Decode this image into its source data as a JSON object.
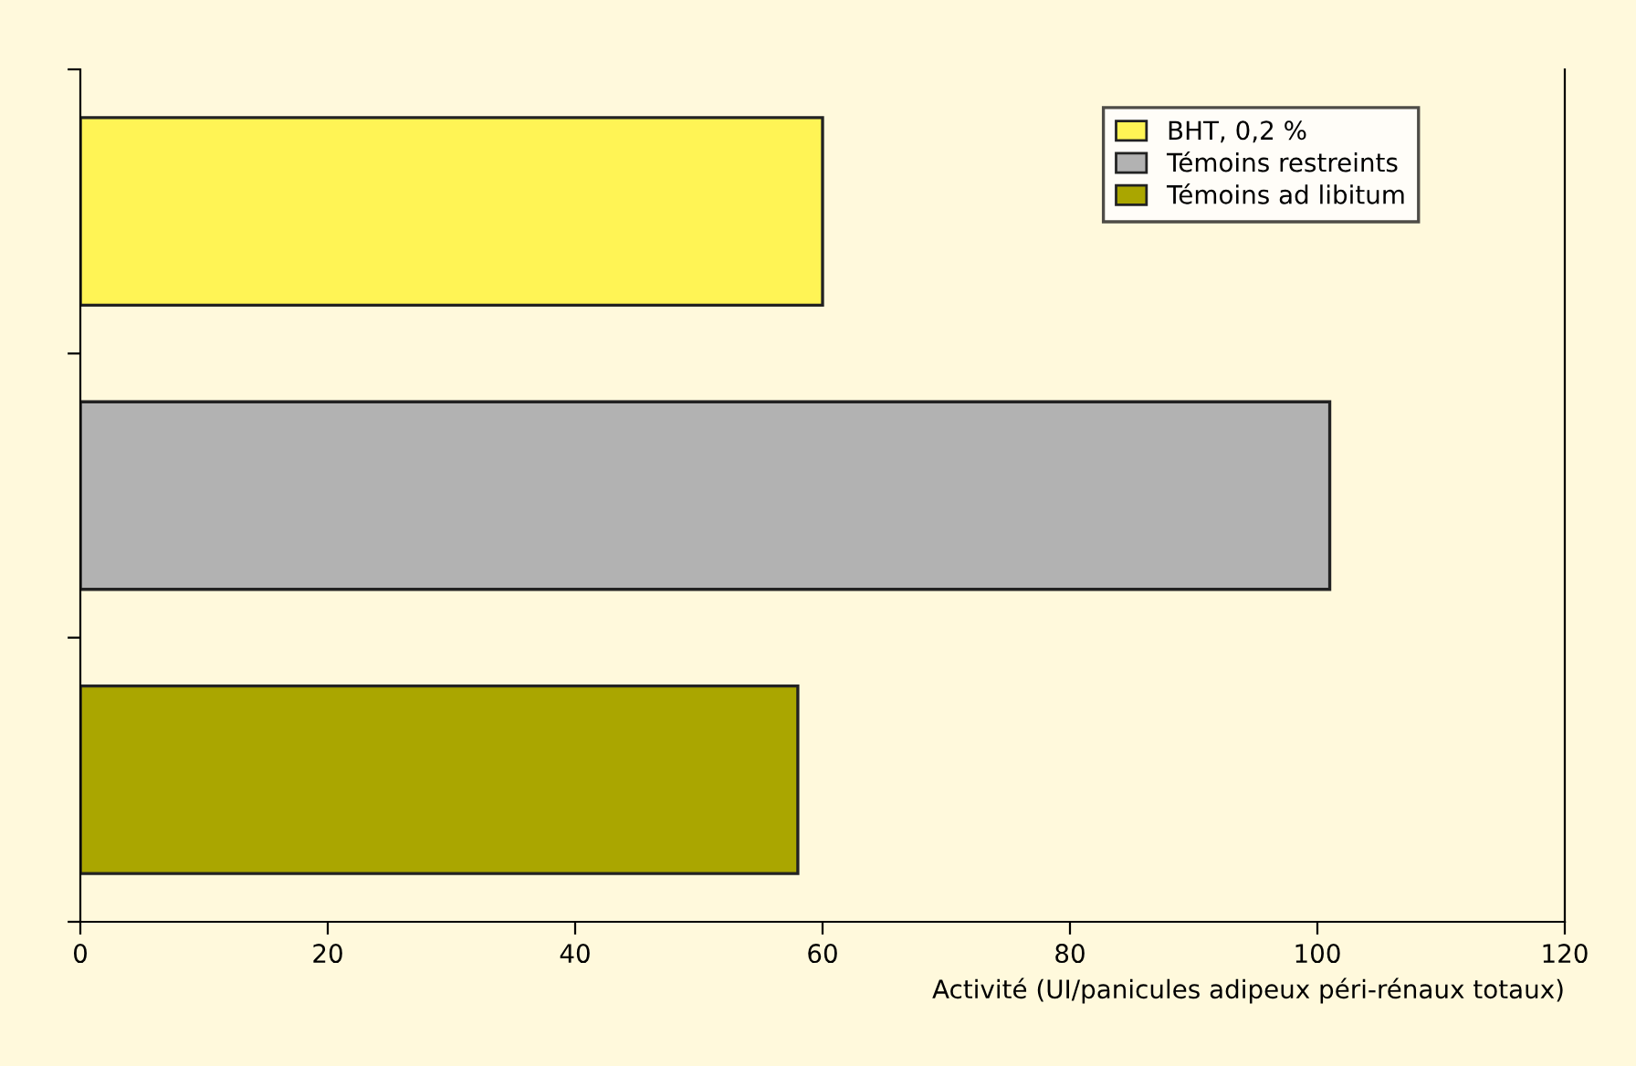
{
  "chart_data": {
    "type": "bar",
    "orientation": "horizontal",
    "xlabel": "Activité (UI/panicules adipeux péri-rénaux totaux)",
    "categories": [
      null,
      null,
      null
    ],
    "series": [
      {
        "name": "BHT, 0,2 %",
        "color": "#fff455",
        "values": [
          60,
          null,
          null
        ]
      },
      {
        "name": "Témoins restreints",
        "color": "#b2b2b2",
        "values": [
          null,
          101,
          null
        ]
      },
      {
        "name": "Témoins ad libitum",
        "color": "#aaa600",
        "values": [
          null,
          null,
          58
        ]
      }
    ],
    "xlim": [
      0,
      120
    ],
    "xticks": [
      0,
      20,
      40,
      60,
      80,
      100,
      120
    ],
    "grid": false,
    "legend": "top right",
    "tick_labels": "x"
  }
}
